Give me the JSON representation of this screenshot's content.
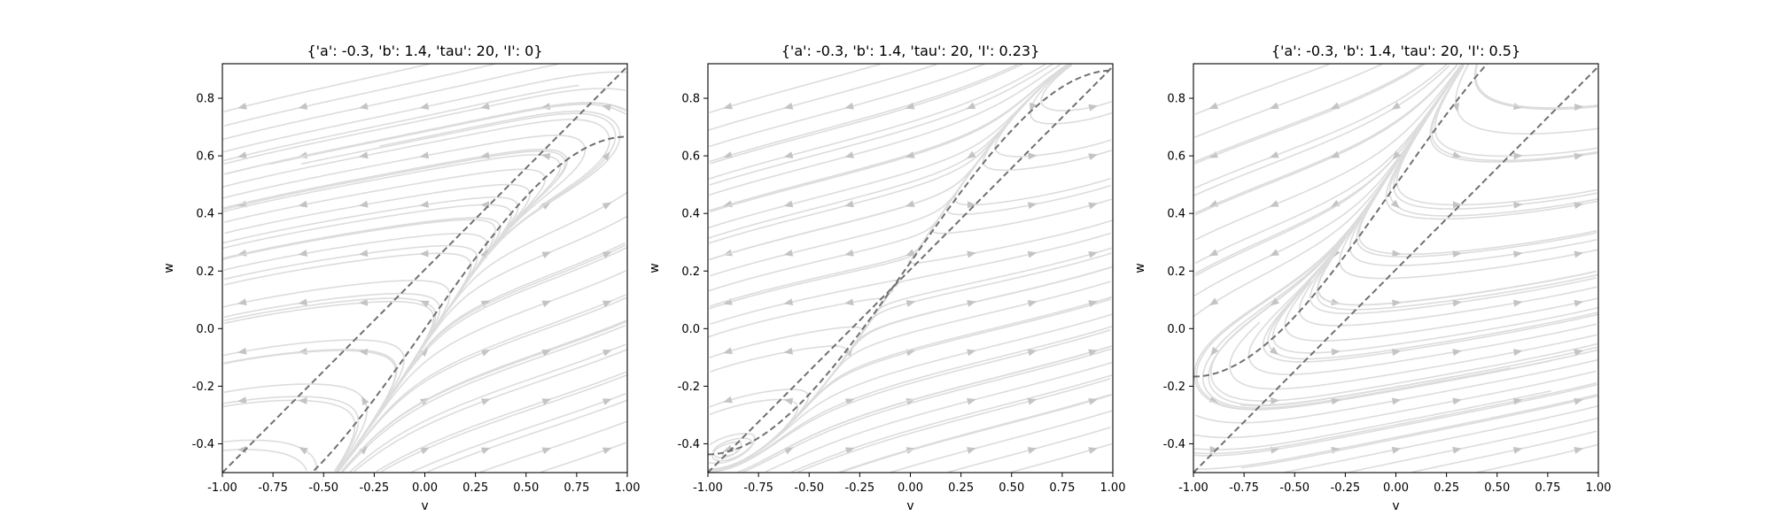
{
  "chart_data": [
    {
      "type": "streamplot",
      "title": "{'a': -0.3, 'b': 1.4, 'tau': 20, 'I': 0}",
      "xlabel": "v",
      "ylabel": "w",
      "xlim": [
        -1.0,
        1.0
      ],
      "ylim": [
        -0.5,
        0.92
      ],
      "xticks": [
        "-1.00",
        "-0.75",
        "-0.50",
        "-0.25",
        "0.00",
        "0.25",
        "0.50",
        "0.75",
        "1.00"
      ],
      "yticks": [
        "-0.4",
        "-0.2",
        "0.0",
        "0.2",
        "0.4",
        "0.6",
        "0.8"
      ],
      "params": {
        "a": -0.3,
        "b": 1.4,
        "tau": 20,
        "I": 0
      },
      "v_nullcline": "w = v - v^3/3 + I",
      "w_nullcline": "w = (v - a)/b"
    },
    {
      "type": "streamplot",
      "title": "{'a': -0.3, 'b': 1.4, 'tau': 20, 'I': 0.23}",
      "xlabel": "v",
      "ylabel": "w",
      "xlim": [
        -1.0,
        1.0
      ],
      "ylim": [
        -0.5,
        0.92
      ],
      "xticks": [
        "-1.00",
        "-0.75",
        "-0.50",
        "-0.25",
        "0.00",
        "0.25",
        "0.50",
        "0.75",
        "1.00"
      ],
      "yticks": [
        "-0.4",
        "-0.2",
        "0.0",
        "0.2",
        "0.4",
        "0.6",
        "0.8"
      ],
      "params": {
        "a": -0.3,
        "b": 1.4,
        "tau": 20,
        "I": 0.23
      },
      "v_nullcline": "w = v - v^3/3 + I",
      "w_nullcline": "w = (v - a)/b"
    },
    {
      "type": "streamplot",
      "title": "{'a': -0.3, 'b': 1.4, 'tau': 20, 'I': 0.5}",
      "xlabel": "v",
      "ylabel": "w",
      "xlim": [
        -1.0,
        1.0
      ],
      "ylim": [
        -0.5,
        0.92
      ],
      "xticks": [
        "-1.00",
        "-0.75",
        "-0.50",
        "-0.25",
        "0.00",
        "0.25",
        "0.50",
        "0.75",
        "1.00"
      ],
      "yticks": [
        "-0.4",
        "-0.2",
        "0.0",
        "0.2",
        "0.4",
        "0.6",
        "0.8"
      ],
      "params": {
        "a": -0.3,
        "b": 1.4,
        "tau": 20,
        "I": 0.5
      },
      "v_nullcline": "w = v - v^3/3 + I",
      "w_nullcline": "w = (v - a)/b"
    }
  ],
  "colors": {
    "nullcline": "#707070",
    "streamline": "#dcdcdc",
    "arrow": "#c4c4c4",
    "frame": "#000000"
  }
}
